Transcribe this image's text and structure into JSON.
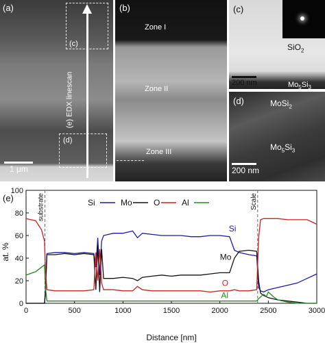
{
  "panels": {
    "a": {
      "label": "(a)",
      "scale_label": "1 μm",
      "callout_c": "(c)",
      "callout_d": "(d)",
      "linescan_label": "(e) EDX linescan"
    },
    "b": {
      "label": "(b)",
      "zone1": "Zone I",
      "zone2": "Zone II",
      "zone3": "Zone III"
    },
    "c": {
      "label": "(c)",
      "phase": "SiO",
      "phase_sub": "2",
      "phase2": "Mo",
      "phase2_sub1": "5",
      "phase2_mid": "Si",
      "phase2_sub2": "3",
      "scale_label": "200 nm"
    },
    "d": {
      "label": "(d)",
      "phase_top": "MoSi",
      "phase_top_sub": "2",
      "phase_bottom": "Mo",
      "phase_bottom_sub1": "5",
      "phase_bottom_mid": "Si",
      "phase_bottom_sub2": "3",
      "scale_label": "200 nm"
    }
  },
  "chart_data": {
    "type": "line",
    "panel_label": "(e)",
    "xlabel": "Distance [nm]",
    "ylabel": "at. %",
    "xlim": [
      0,
      3000
    ],
    "ylim": [
      0,
      100
    ],
    "xticks": [
      0,
      500,
      1000,
      1500,
      2000,
      2500,
      3000
    ],
    "yticks": [
      0,
      20,
      40,
      60,
      80,
      100
    ],
    "legend_position": "top-center",
    "annotations": {
      "substrate": {
        "text": "substrate",
        "x": 195
      },
      "scale": {
        "text": "Scale",
        "x": 2390
      }
    },
    "series": [
      {
        "name": "Si",
        "color": "#1a1aa8",
        "label_at": [
          2130,
          66
        ],
        "x": [
          0,
          100,
          160,
          190,
          200,
          215,
          300,
          400,
          500,
          600,
          700,
          720,
          740,
          760,
          780,
          800,
          900,
          1000,
          1100,
          1150,
          1200,
          1300,
          1400,
          1500,
          1600,
          1700,
          1800,
          1900,
          2000,
          2100,
          2150,
          2200,
          2300,
          2380,
          2400,
          2420,
          2450,
          2500,
          2600,
          2700,
          2800,
          2900,
          3000
        ],
        "y": [
          0,
          0,
          0,
          0,
          8,
          44,
          45,
          45,
          44,
          45,
          44,
          32,
          58,
          25,
          55,
          60,
          62,
          62,
          64,
          58,
          62,
          61,
          60,
          60,
          60,
          59,
          59,
          60,
          60,
          59,
          47,
          45,
          43,
          42,
          14,
          11,
          10,
          12,
          14,
          16,
          18,
          22,
          26
        ]
      },
      {
        "name": "Mo",
        "color": "#111111",
        "label_at": [
          2060,
          41
        ],
        "x": [
          0,
          100,
          160,
          190,
          200,
          215,
          300,
          400,
          500,
          600,
          700,
          720,
          740,
          760,
          780,
          800,
          900,
          1000,
          1100,
          1150,
          1200,
          1300,
          1400,
          1500,
          1600,
          1700,
          1800,
          1900,
          2000,
          2100,
          2150,
          2200,
          2300,
          2380,
          2400,
          2420,
          2450,
          2500,
          2600,
          2700,
          2800,
          2900,
          3000
        ],
        "y": [
          0,
          0,
          0,
          0,
          12,
          43,
          43,
          44,
          43,
          44,
          43,
          12,
          52,
          10,
          48,
          22,
          22,
          23,
          22,
          20,
          23,
          24,
          25,
          24,
          25,
          25,
          25,
          26,
          27,
          27,
          40,
          46,
          47,
          46,
          20,
          9,
          7,
          5,
          3,
          2,
          1,
          0,
          0
        ]
      },
      {
        "name": "O",
        "color": "#d21e1e",
        "label_at": [
          2055,
          18
        ],
        "x": [
          0,
          100,
          160,
          190,
          200,
          215,
          300,
          400,
          500,
          600,
          700,
          720,
          740,
          760,
          780,
          800,
          900,
          1000,
          1100,
          1150,
          1200,
          1300,
          1400,
          1500,
          1600,
          1700,
          1800,
          1900,
          2000,
          2100,
          2150,
          2200,
          2300,
          2380,
          2400,
          2420,
          2450,
          2500,
          2600,
          2700,
          2800,
          2900,
          3000
        ],
        "y": [
          75,
          73,
          65,
          55,
          30,
          12,
          11,
          11,
          11,
          11,
          12,
          45,
          20,
          48,
          18,
          12,
          12,
          11,
          11,
          15,
          12,
          11,
          11,
          11,
          11,
          11,
          11,
          10,
          11,
          11,
          12,
          11,
          11,
          12,
          58,
          74,
          75,
          75,
          75,
          74,
          74,
          74,
          70
        ]
      },
      {
        "name": "Al",
        "color": "#1f8a1f",
        "label_at": [
          2050,
          7
        ],
        "x": [
          0,
          100,
          160,
          190,
          200,
          215,
          300,
          400,
          500,
          600,
          700,
          800,
          900,
          1000,
          1200,
          1400,
          1600,
          1800,
          2000,
          2200,
          2380,
          2400,
          2450,
          2480,
          2500,
          2550,
          2600,
          2700,
          2800,
          2900,
          3000
        ],
        "y": [
          25,
          28,
          32,
          34,
          14,
          2,
          2,
          2,
          2,
          2,
          2,
          2,
          2,
          2,
          2,
          2,
          2,
          2,
          2,
          2,
          2,
          4,
          8,
          6,
          10,
          6,
          3,
          1,
          0,
          0,
          0
        ]
      }
    ]
  }
}
